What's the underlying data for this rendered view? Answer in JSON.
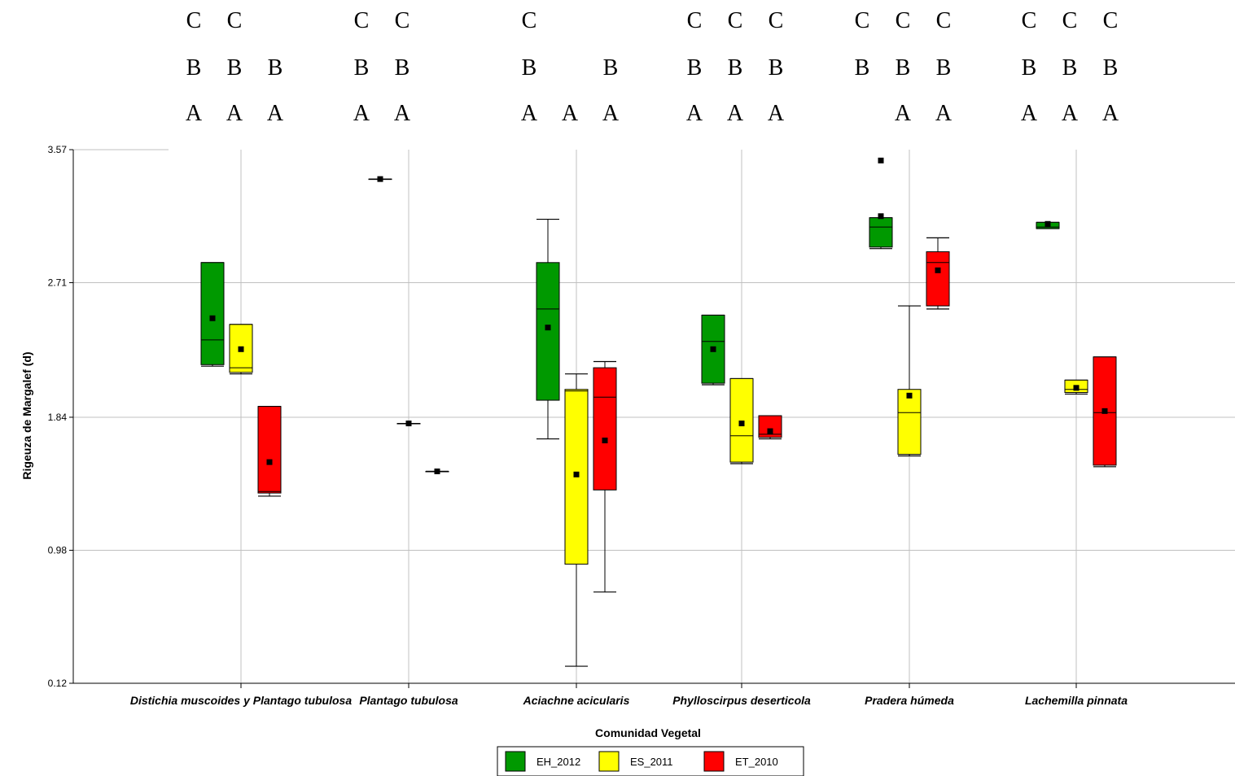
{
  "chart_data": {
    "type": "box",
    "xlabel": "Comunidad Vegetal",
    "ylabel": "Rigeuza de Margalef (d)",
    "ylim": [
      0.12,
      3.57
    ],
    "yticks": [
      "0.12",
      "0.98",
      "1.84",
      "2.71",
      "3.57"
    ],
    "grid": true,
    "legend_position": "bottom",
    "categories": [
      "Distichia muscoides y Plantago tubulosa",
      "Plantago tubulosa",
      "Aciachne acicularis",
      "Phylloscirpus deserticola",
      "Pradera húmeda",
      "Lachemilla pinnata"
    ],
    "series": [
      {
        "name": "EH_2012",
        "color": "#009900",
        "boxes": [
          {
            "min": 2.17,
            "q1": 2.18,
            "median": 2.34,
            "q3": 2.84,
            "max": 2.84,
            "mean": 2.48
          },
          {
            "min": 3.38,
            "q1": 3.38,
            "median": 3.38,
            "q3": 3.38,
            "max": 3.38,
            "mean": 3.38
          },
          {
            "min": 1.7,
            "q1": 1.95,
            "median": 2.54,
            "q3": 2.84,
            "max": 3.12,
            "mean": 2.42
          },
          {
            "min": 2.05,
            "q1": 2.06,
            "median": 2.33,
            "q3": 2.5,
            "max": 2.5,
            "mean": 2.28
          },
          {
            "min": 2.93,
            "q1": 2.94,
            "median": 3.07,
            "q3": 3.13,
            "max": 3.13,
            "mean": 3.14,
            "outliers": [
              3.5
            ]
          },
          {
            "min": 3.06,
            "q1": 3.06,
            "median": 3.07,
            "q3": 3.1,
            "max": 3.1,
            "mean": 3.09
          }
        ]
      },
      {
        "name": "ES_2011",
        "color": "#ffff00",
        "boxes": [
          {
            "min": 2.12,
            "q1": 2.13,
            "median": 2.16,
            "q3": 2.44,
            "max": 2.44,
            "mean": 2.28
          },
          {
            "min": 1.8,
            "q1": 1.8,
            "median": 1.8,
            "q3": 1.8,
            "max": 1.8,
            "mean": 1.8
          },
          {
            "min": 0.23,
            "q1": 0.89,
            "median": 2.01,
            "q3": 2.02,
            "max": 2.12,
            "mean": 1.47
          },
          {
            "min": 1.54,
            "q1": 1.55,
            "median": 1.72,
            "q3": 2.09,
            "max": 2.09,
            "mean": 1.8
          },
          {
            "min": 1.59,
            "q1": 1.6,
            "median": 1.87,
            "q3": 2.02,
            "max": 2.56,
            "mean": 1.98
          },
          {
            "min": 1.99,
            "q1": 2.0,
            "median": 2.02,
            "q3": 2.08,
            "max": 2.08,
            "mean": 2.03
          }
        ]
      },
      {
        "name": "ET_2010",
        "color": "#ff0000",
        "boxes": [
          {
            "min": 1.33,
            "q1": 1.35,
            "median": 1.36,
            "q3": 1.91,
            "max": 1.91,
            "mean": 1.55
          },
          {
            "min": 1.49,
            "q1": 1.49,
            "median": 1.49,
            "q3": 1.49,
            "max": 1.49,
            "mean": 1.49
          },
          {
            "min": 0.71,
            "q1": 1.37,
            "median": 1.97,
            "q3": 2.16,
            "max": 2.2,
            "mean": 1.69
          },
          {
            "min": 1.7,
            "q1": 1.71,
            "median": 1.73,
            "q3": 1.85,
            "max": 1.85,
            "mean": 1.75
          },
          {
            "min": 2.54,
            "q1": 2.56,
            "median": 2.84,
            "q3": 2.91,
            "max": 3.0,
            "mean": 2.79
          },
          {
            "min": 1.52,
            "q1": 1.53,
            "median": 1.87,
            "q3": 2.23,
            "max": 2.23,
            "mean": 1.88
          }
        ]
      }
    ],
    "annotations": [
      {
        "category": 0,
        "letters": [
          [
            "C",
            "B",
            "A"
          ],
          [
            "C",
            "B",
            "A"
          ],
          [
            "",
            "B",
            "A"
          ]
        ]
      },
      {
        "category": 1,
        "letters": [
          [
            "C",
            "B",
            "A"
          ],
          [
            "C",
            "B",
            "A"
          ],
          [
            "",
            "",
            ""
          ]
        ]
      },
      {
        "category": 2,
        "letters": [
          [
            "C",
            "B",
            "A"
          ],
          [
            "",
            "",
            "A"
          ],
          [
            "",
            "B",
            "A"
          ]
        ]
      },
      {
        "category": 3,
        "letters": [
          [
            "C",
            "B",
            "A"
          ],
          [
            "C",
            "B",
            "A"
          ],
          [
            "C",
            "B",
            "A"
          ]
        ]
      },
      {
        "category": 4,
        "letters": [
          [
            "C",
            "B",
            ""
          ],
          [
            "C",
            "B",
            "A"
          ],
          [
            "C",
            "B",
            "A"
          ]
        ]
      },
      {
        "category": 5,
        "letters": [
          [
            "C",
            "B",
            "A"
          ],
          [
            "C",
            "B",
            "A"
          ],
          [
            "C",
            "B",
            "A"
          ]
        ]
      }
    ]
  }
}
